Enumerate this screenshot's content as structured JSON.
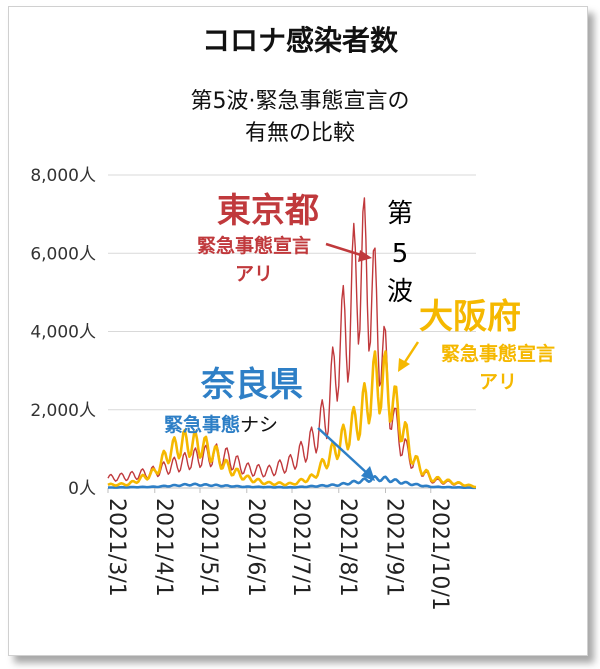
{
  "title": "コロナ感染者数",
  "subtitle_lines": [
    "第5波·緊急事態宣言の",
    "有無の比較"
  ],
  "colors": {
    "tokyo": "#c0393c",
    "osaka": "#f5b800",
    "nara": "#2e7fc6",
    "grid": "#d9d9d9",
    "axis": "#bfbfbf"
  },
  "annotations": {
    "tokyo_name": "東京都",
    "tokyo_note_1": "緊急事態宣言",
    "tokyo_note_2": "アリ",
    "osaka_name": "大阪府",
    "osaka_note_1": "緊急事態宣言",
    "osaka_note_2": "アリ",
    "nara_name": "奈良県",
    "nara_note_bold": "緊急事態",
    "nara_note_plain": "ナシ",
    "wave_1": "第",
    "wave_2": "5",
    "wave_3": "波"
  },
  "chart_data": {
    "type": "line",
    "title": "コロナ感染者数",
    "xlabel": "",
    "ylabel": "",
    "ylim": [
      0,
      8000
    ],
    "yticks": [
      0,
      2000,
      4000,
      6000,
      8000
    ],
    "ytick_labels": [
      "0人",
      "2,000人",
      "4,000人",
      "6,000人",
      "8,000人"
    ],
    "x_range": [
      "2021/3/1",
      "2021/10/31"
    ],
    "xtick_labels": [
      "2021/3/1",
      "2021/4/1",
      "2021/5/1",
      "2021/6/1",
      "2021/7/1",
      "2021/8/1",
      "2021/9/1",
      "2021/10/1"
    ],
    "grid": "horizontal",
    "series": [
      {
        "name": "東京都",
        "color": "#c0393c",
        "points": [
          [
            "2021/3/1",
            250
          ],
          [
            "2021/3/15",
            300
          ],
          [
            "2021/4/1",
            420
          ],
          [
            "2021/4/15",
            600
          ],
          [
            "2021/5/1",
            800
          ],
          [
            "2021/5/15",
            850
          ],
          [
            "2021/6/1",
            480
          ],
          [
            "2021/6/15",
            420
          ],
          [
            "2021/7/1",
            650
          ],
          [
            "2021/7/15",
            1200
          ],
          [
            "2021/7/25",
            2000
          ],
          [
            "2021/8/1",
            3600
          ],
          [
            "2021/8/8",
            4200
          ],
          [
            "2021/8/13",
            5600
          ],
          [
            "2021/8/20",
            5500
          ],
          [
            "2021/8/27",
            4200
          ],
          [
            "2021/9/1",
            3000
          ],
          [
            "2021/9/7",
            1600
          ],
          [
            "2021/9/15",
            900
          ],
          [
            "2021/10/1",
            200
          ],
          [
            "2021/10/31",
            30
          ]
        ]
      },
      {
        "name": "大阪府",
        "color": "#f5b800",
        "points": [
          [
            "2021/3/1",
            80
          ],
          [
            "2021/3/15",
            100
          ],
          [
            "2021/4/1",
            400
          ],
          [
            "2021/4/10",
            900
          ],
          [
            "2021/4/20",
            1150
          ],
          [
            "2021/5/1",
            1100
          ],
          [
            "2021/5/10",
            900
          ],
          [
            "2021/5/20",
            500
          ],
          [
            "2021/6/1",
            250
          ],
          [
            "2021/6/15",
            120
          ],
          [
            "2021/7/1",
            100
          ],
          [
            "2021/7/15",
            280
          ],
          [
            "2021/8/1",
            1100
          ],
          [
            "2021/8/15",
            1800
          ],
          [
            "2021/8/25",
            2700
          ],
          [
            "2021/9/1",
            2700
          ],
          [
            "2021/9/10",
            1800
          ],
          [
            "2021/9/20",
            700
          ],
          [
            "2021/10/1",
            250
          ],
          [
            "2021/10/31",
            30
          ]
        ]
      },
      {
        "name": "奈良県",
        "color": "#2e7fc6",
        "points": [
          [
            "2021/3/1",
            10
          ],
          [
            "2021/4/1",
            30
          ],
          [
            "2021/4/25",
            90
          ],
          [
            "2021/5/10",
            70
          ],
          [
            "2021/6/1",
            30
          ],
          [
            "2021/7/1",
            15
          ],
          [
            "2021/8/1",
            80
          ],
          [
            "2021/8/25",
            240
          ],
          [
            "2021/9/1",
            230
          ],
          [
            "2021/9/15",
            120
          ],
          [
            "2021/10/1",
            30
          ],
          [
            "2021/10/31",
            5
          ]
        ]
      }
    ]
  }
}
